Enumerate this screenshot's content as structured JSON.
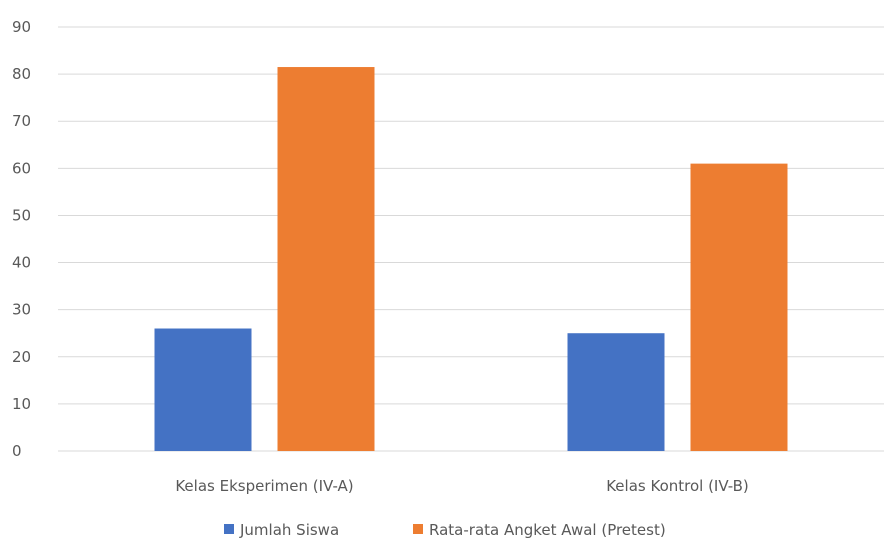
{
  "chart_data": {
    "type": "bar",
    "title": "",
    "xlabel": "",
    "ylabel": "",
    "categories": [
      "Kelas Eksperimen (IV-A)",
      "Kelas Kontrol (IV-B)"
    ],
    "series": [
      {
        "name": "Jumlah Siswa",
        "values": [
          26,
          25
        ],
        "color": "#4472c4"
      },
      {
        "name": "Rata-rata Angket Awal (Pretest)",
        "values": [
          81.5,
          61
        ],
        "color": "#ed7d31"
      }
    ],
    "ylim": [
      0,
      90
    ],
    "yticks": [
      0,
      10,
      20,
      30,
      40,
      50,
      60,
      70,
      80,
      90
    ],
    "grid": true,
    "legend_position": "bottom"
  }
}
